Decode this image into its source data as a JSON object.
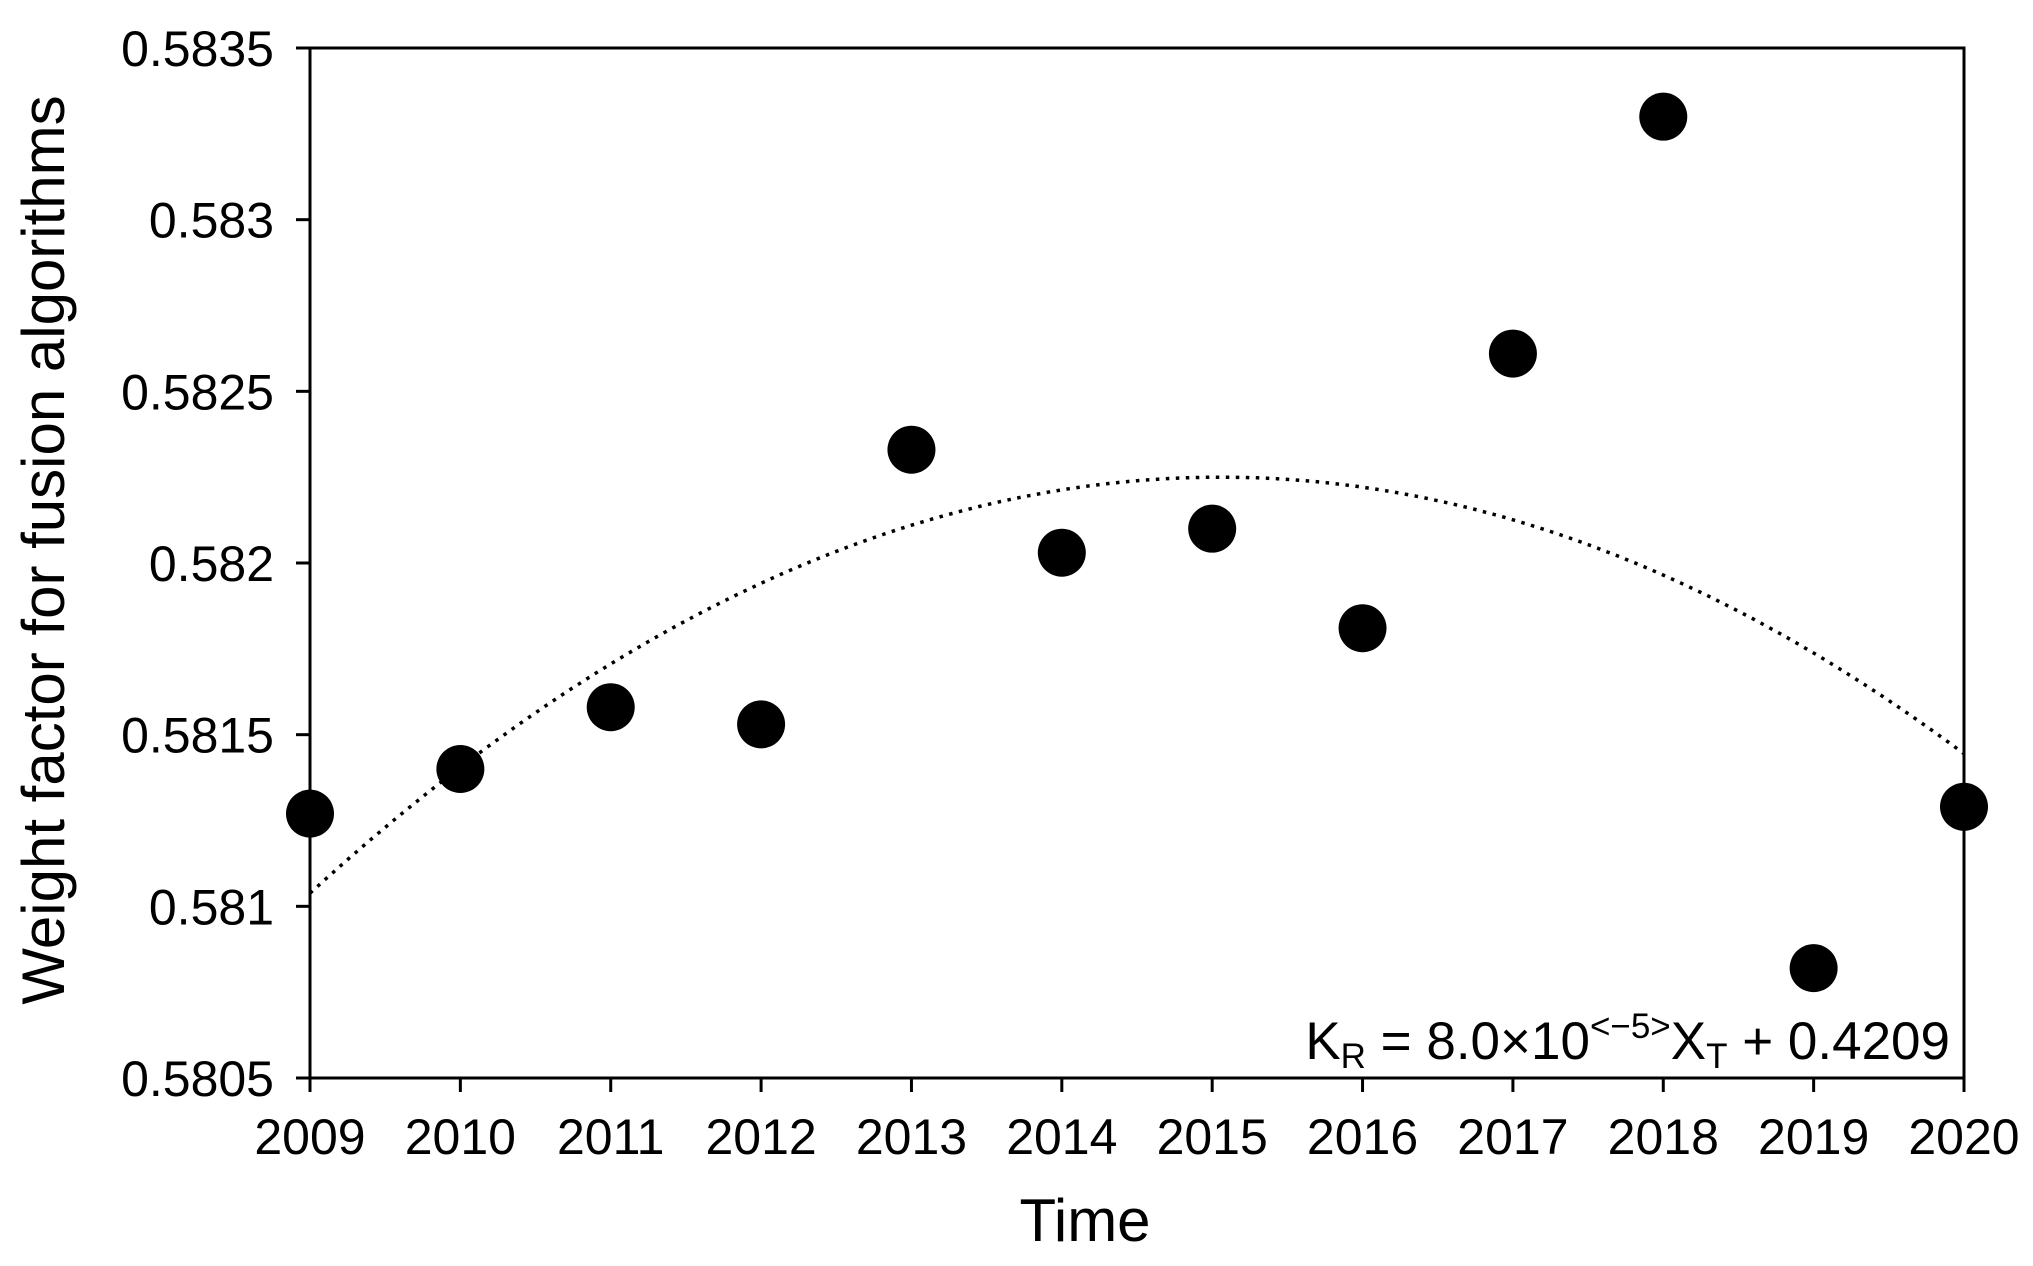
{
  "chart_data": {
    "type": "scatter",
    "title": "",
    "xlabel": "Time",
    "ylabel": "Weight factor for fusion algorithms",
    "x": [
      2009,
      2010,
      2011,
      2012,
      2013,
      2014,
      2015,
      2016,
      2017,
      2018,
      2019,
      2020
    ],
    "series": [
      {
        "name": "Weight factor for fusion algorithms",
        "values": [
          0.58127,
          0.5814,
          0.58158,
          0.58153,
          0.58233,
          0.58203,
          0.5821,
          0.58181,
          0.58261,
          0.5833,
          0.58082,
          0.58129
        ]
      }
    ],
    "xlim": [
      2009,
      2020
    ],
    "ylim": [
      0.5805,
      0.5835
    ],
    "xtick_labels": [
      "2009",
      "2010",
      "2011",
      "2012",
      "2013",
      "2014",
      "2015",
      "2016",
      "2017",
      "2018",
      "2019",
      "2020"
    ],
    "ytick_values": [
      0.5835,
      0.583,
      0.5825,
      0.582,
      0.5815,
      0.581,
      0.5805
    ],
    "ytick_labels": [
      "0.5835",
      "0.583",
      "0.5825",
      "0.582",
      "0.5815",
      "0.581",
      "0.5805"
    ],
    "grid": false,
    "legend": null,
    "frame": "full-box",
    "marker": {
      "shape": "circle",
      "radius_px": 24,
      "color": "#000000"
    },
    "trendline": {
      "type": "quadratic",
      "style": "dotted",
      "color": "#000000",
      "vertex_x": 2015.06,
      "vertex_y": 0.58225,
      "a": -3.3e-05,
      "x_start": 2009,
      "x_end": 2020
    },
    "annotation": {
      "text": "K_R = 8.0×10^<−5>X_T + 0.4209",
      "parts": [
        {
          "t": "K",
          "s": "base"
        },
        {
          "t": "R",
          "s": "sub"
        },
        {
          "t": " = 8.0×10",
          "s": "base"
        },
        {
          "t": "<−5>",
          "s": "sup"
        },
        {
          "t": "X",
          "s": "base"
        },
        {
          "t": "T",
          "s": "sub"
        },
        {
          "t": " + 0.4209",
          "s": "base"
        }
      ]
    },
    "colors": {
      "foreground": "#000000",
      "background": "#ffffff"
    }
  }
}
